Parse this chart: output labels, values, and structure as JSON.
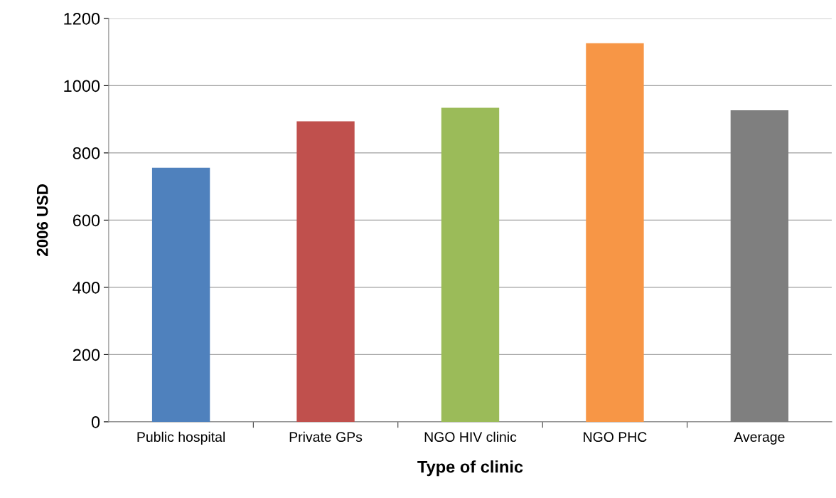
{
  "chart_data": {
    "type": "bar",
    "xlabel": "Type of clinic",
    "ylabel": "2006 USD",
    "categories": [
      "Public hospital",
      "Private GPs",
      "NGO HIV clinic",
      "NGO PHC",
      "Average"
    ],
    "values": [
      756,
      894,
      934,
      1126,
      927
    ],
    "colors": [
      "#4f81bd",
      "#c0504d",
      "#9bbb59",
      "#f79646",
      "#7f7f7f"
    ],
    "ylim": [
      0,
      1200
    ],
    "yticks": [
      0,
      200,
      400,
      600,
      800,
      1000,
      1200
    ],
    "grid": "y",
    "legend": false
  }
}
